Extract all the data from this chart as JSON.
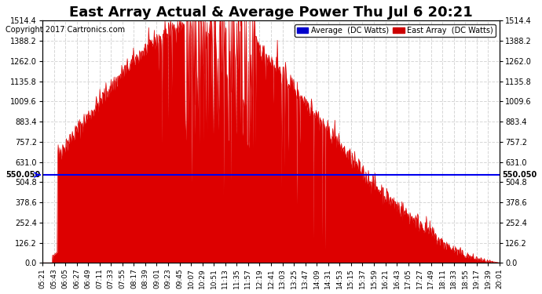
{
  "title": "East Array Actual & Average Power Thu Jul 6 20:21",
  "copyright": "Copyright 2017 Cartronics.com",
  "y_max": 1514.4,
  "y_min": 0.0,
  "y_ticks": [
    0.0,
    126.2,
    252.4,
    378.6,
    504.8,
    631.0,
    757.2,
    883.4,
    1009.6,
    1135.8,
    1262.0,
    1388.2,
    1514.4
  ],
  "average_value": 550.05,
  "average_label": "550.050",
  "legend_avg_color": "#0000cc",
  "legend_east_color": "#cc0000",
  "bg_color": "#ffffff",
  "plot_bg_color": "#ffffff",
  "grid_color": "#cccccc",
  "fill_color": "#dd0000",
  "line_color": "#dd0000",
  "avg_line_color": "#0000ee",
  "x_labels": [
    "05:21",
    "05:43",
    "06:05",
    "06:27",
    "06:49",
    "07:11",
    "07:33",
    "07:55",
    "08:17",
    "08:39",
    "09:01",
    "09:23",
    "09:45",
    "10:07",
    "10:29",
    "10:51",
    "11:13",
    "11:35",
    "11:57",
    "12:19",
    "12:41",
    "13:03",
    "13:25",
    "13:47",
    "14:09",
    "14:31",
    "14:53",
    "15:15",
    "15:37",
    "15:59",
    "16:21",
    "16:43",
    "17:05",
    "17:27",
    "17:49",
    "18:11",
    "18:33",
    "18:55",
    "19:17",
    "19:39",
    "20:01"
  ],
  "num_points": 900
}
